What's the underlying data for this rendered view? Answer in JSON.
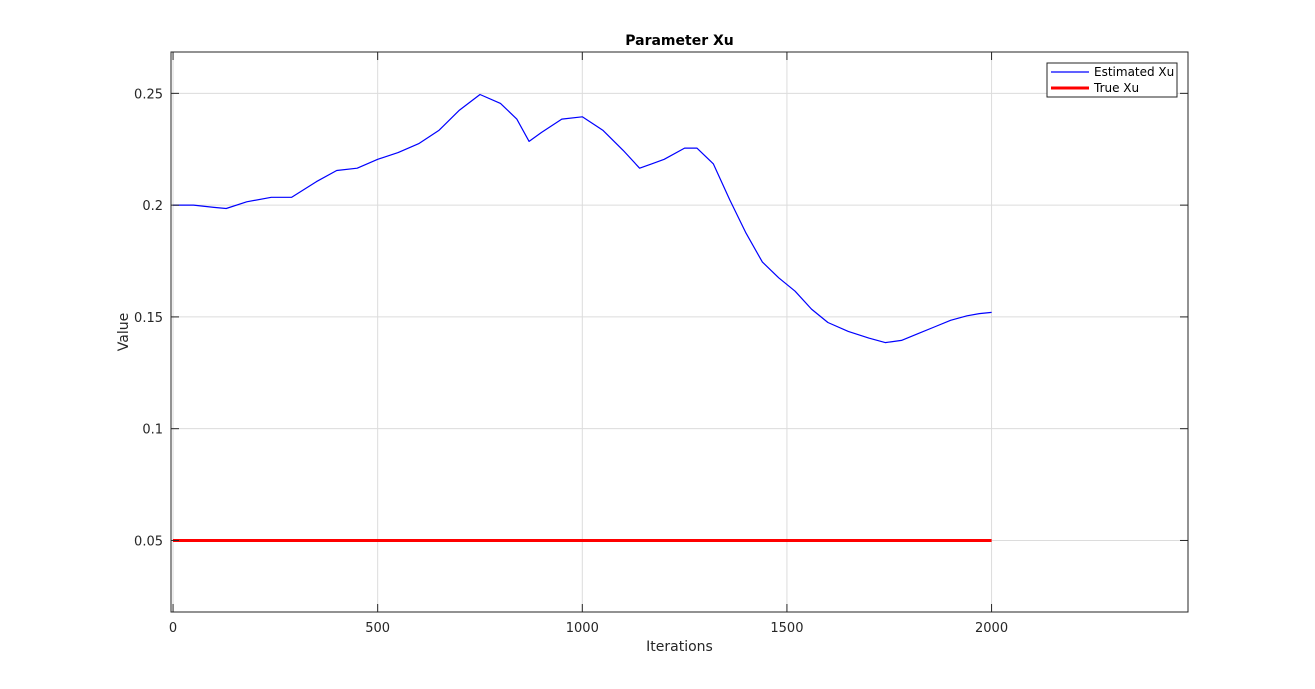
{
  "chart_data": {
    "type": "line",
    "title": "Parameter Xu",
    "xlabel": "Iterations",
    "ylabel": "Value",
    "xlim": [
      -5,
      2480
    ],
    "ylim": [
      0.018,
      0.2685
    ],
    "xticks": [
      0,
      500,
      1000,
      1500,
      2000
    ],
    "xtick_labels": [
      "0",
      "500",
      "1000",
      "1500",
      "2000"
    ],
    "yticks": [
      0.05,
      0.1,
      0.15,
      0.2,
      0.25
    ],
    "ytick_labels": [
      "0.05",
      "0.1",
      "0.15",
      "0.2",
      "0.25"
    ],
    "grid": true,
    "legend_position": "top-right",
    "series": [
      {
        "name": "Estimated Xu",
        "color": "#0000ff",
        "x": [
          0,
          50,
          100,
          130,
          180,
          240,
          290,
          350,
          400,
          450,
          500,
          550,
          600,
          650,
          700,
          750,
          800,
          840,
          870,
          900,
          950,
          1000,
          1050,
          1100,
          1140,
          1170,
          1200,
          1250,
          1280,
          1320,
          1360,
          1400,
          1440,
          1480,
          1520,
          1560,
          1600,
          1650,
          1700,
          1740,
          1780,
          1820,
          1860,
          1900,
          1940,
          1970,
          2000
        ],
        "y": [
          0.2,
          0.2,
          0.199,
          0.1985,
          0.2015,
          0.2035,
          0.2035,
          0.2105,
          0.2155,
          0.2165,
          0.2205,
          0.2235,
          0.2275,
          0.2335,
          0.2425,
          0.2495,
          0.2455,
          0.2385,
          0.2285,
          0.2325,
          0.2385,
          0.2395,
          0.2335,
          0.2245,
          0.2165,
          0.2185,
          0.2205,
          0.2255,
          0.2255,
          0.2185,
          0.2025,
          0.1875,
          0.1745,
          0.1675,
          0.1615,
          0.1535,
          0.1475,
          0.1435,
          0.1405,
          0.1385,
          0.1395,
          0.1425,
          0.1455,
          0.1485,
          0.1505,
          0.1515,
          0.152
        ]
      },
      {
        "name": "True Xu",
        "color": "#ff0000",
        "x": [
          0,
          2000
        ],
        "y": [
          0.05,
          0.05
        ]
      }
    ]
  }
}
